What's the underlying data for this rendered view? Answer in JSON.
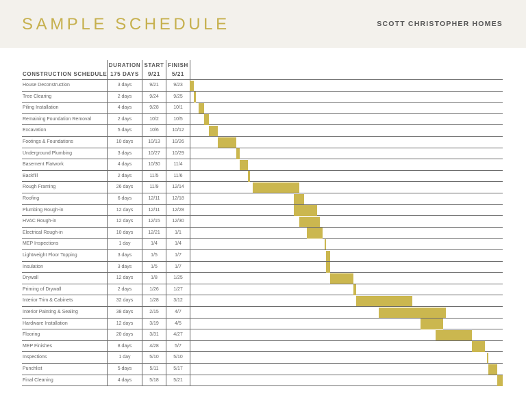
{
  "header": {
    "title": "SAMPLE SCHEDULE",
    "brand": "SCOTT CHRISTOPHER HOMES"
  },
  "table_header": {
    "task_col": "CONSTRUCTION SCHEDULE",
    "duration_col": "DURATION",
    "duration_total": "175 DAYS",
    "start_col": "START",
    "start_total": "9/21",
    "finish_col": "FINISH",
    "finish_total": "5/21"
  },
  "colors": {
    "bar": "#cbb74f",
    "title": "#c6b04e",
    "header_bg": "#f3f1ec"
  },
  "chart_data": {
    "type": "gantt",
    "project_start": "9/21",
    "project_end": "5/21",
    "tasks": [
      {
        "name": "House Deconstruction",
        "duration": "3 days",
        "start": "9/21",
        "finish": "9/23"
      },
      {
        "name": "Tree Clearing",
        "duration": "2 days",
        "start": "9/24",
        "finish": "9/25"
      },
      {
        "name": "Piling Installation",
        "duration": "4 days",
        "start": "9/28",
        "finish": "10/1"
      },
      {
        "name": "Remaining Foundation Removal",
        "duration": "2 days",
        "start": "10/2",
        "finish": "10/5"
      },
      {
        "name": "Excavation",
        "duration": "5 days",
        "start": "10/6",
        "finish": "10/12"
      },
      {
        "name": "Footings & Foundations",
        "duration": "10 days",
        "start": "10/13",
        "finish": "10/26"
      },
      {
        "name": "Underground Plumbing",
        "duration": "3 days",
        "start": "10/27",
        "finish": "10/29"
      },
      {
        "name": "Basement Flatwork",
        "duration": "4 days",
        "start": "10/30",
        "finish": "11/4"
      },
      {
        "name": "Backfill",
        "duration": "2 days",
        "start": "11/5",
        "finish": "11/6"
      },
      {
        "name": "Rough Framing",
        "duration": "26 days",
        "start": "11/9",
        "finish": "12/14"
      },
      {
        "name": "Roofing",
        "duration": "6 days",
        "start": "12/11",
        "finish": "12/18"
      },
      {
        "name": "Plumbing Rough-in",
        "duration": "12 days",
        "start": "12/11",
        "finish": "12/28"
      },
      {
        "name": "HVAC Rough-in",
        "duration": "12 days",
        "start": "12/15",
        "finish": "12/30"
      },
      {
        "name": "Electrical Rough-in",
        "duration": "10 days",
        "start": "12/21",
        "finish": "1/1"
      },
      {
        "name": "MEP Inspections",
        "duration": "1 day",
        "start": "1/4",
        "finish": "1/4"
      },
      {
        "name": "Lightweight Floor Topping",
        "duration": "3 days",
        "start": "1/5",
        "finish": "1/7"
      },
      {
        "name": "Insulation",
        "duration": "3 days",
        "start": "1/5",
        "finish": "1/7"
      },
      {
        "name": "Drywall",
        "duration": "12 days",
        "start": "1/8",
        "finish": "1/25"
      },
      {
        "name": "Priming of Drywall",
        "duration": "2 days",
        "start": "1/26",
        "finish": "1/27"
      },
      {
        "name": "Interior Trim & Cabinets",
        "duration": "32 days",
        "start": "1/28",
        "finish": "3/12"
      },
      {
        "name": "Interior Painting & Sealing",
        "duration": "38 days",
        "start": "2/15",
        "finish": "4/7"
      },
      {
        "name": "Hardware Installation",
        "duration": "12 days",
        "start": "3/19",
        "finish": "4/5"
      },
      {
        "name": "Flooring",
        "duration": "20 days",
        "start": "3/31",
        "finish": "4/27"
      },
      {
        "name": "MEP Finishes",
        "duration": "8 days",
        "start": "4/28",
        "finish": "5/7"
      },
      {
        "name": "Inspections",
        "duration": "1 day",
        "start": "5/10",
        "finish": "5/10"
      },
      {
        "name": "Punchlist",
        "duration": "5 days",
        "start": "5/11",
        "finish": "5/17"
      },
      {
        "name": "Final Cleaning",
        "duration": "4 days",
        "start": "5/18",
        "finish": "5/21"
      }
    ]
  }
}
